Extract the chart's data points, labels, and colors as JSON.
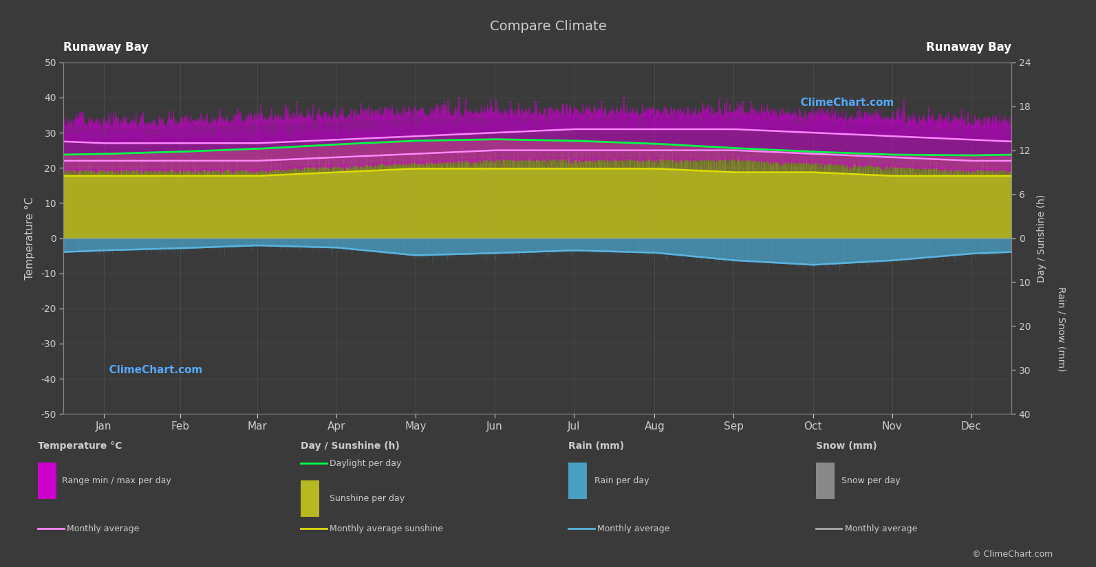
{
  "title": "Compare Climate",
  "location_left": "Runaway Bay",
  "location_right": "Runaway Bay",
  "bg_color": "#3a3a3a",
  "plot_bg_color": "#3a3a3a",
  "text_color": "#cccccc",
  "ylim_left": [
    -50,
    50
  ],
  "months": [
    "Jan",
    "Feb",
    "Mar",
    "Apr",
    "May",
    "Jun",
    "Jul",
    "Aug",
    "Sep",
    "Oct",
    "Nov",
    "Dec"
  ],
  "temp_max_avg": [
    27,
    27,
    27,
    28,
    29,
    30,
    31,
    31,
    31,
    30,
    29,
    28
  ],
  "temp_min_avg": [
    22,
    22,
    22,
    23,
    24,
    25,
    25,
    25,
    25,
    24,
    23,
    22
  ],
  "temp_max_daily_high": [
    31,
    31,
    32,
    33,
    34,
    34,
    34,
    34,
    34,
    33,
    32,
    31
  ],
  "temp_min_daily_low": [
    20,
    20,
    20,
    21,
    22,
    23,
    23,
    23,
    23,
    22,
    21,
    20
  ],
  "daylight_hours": [
    11.5,
    11.8,
    12.2,
    12.8,
    13.3,
    13.5,
    13.3,
    12.9,
    12.3,
    11.8,
    11.4,
    11.3
  ],
  "sunshine_hours": [
    8.5,
    8.5,
    8.5,
    9.0,
    9.5,
    9.5,
    9.5,
    9.5,
    9.0,
    9.0,
    8.5,
    8.5
  ],
  "rain_monthly_avg_mm": [
    86,
    64,
    51,
    64,
    121,
    102,
    86,
    102,
    151,
    188,
    152,
    109
  ],
  "rain_color": "#4a9fc4",
  "sunshine_color": "#b8b820",
  "temp_range_color": "#cc00cc",
  "daylight_color": "#00ff44",
  "rain_monthly_line_color": "#5ab4e0",
  "watermark": "ClimeChart.com",
  "copyright": "© ClimeChart.com",
  "grid_color": "#666666",
  "spine_color": "#888888"
}
